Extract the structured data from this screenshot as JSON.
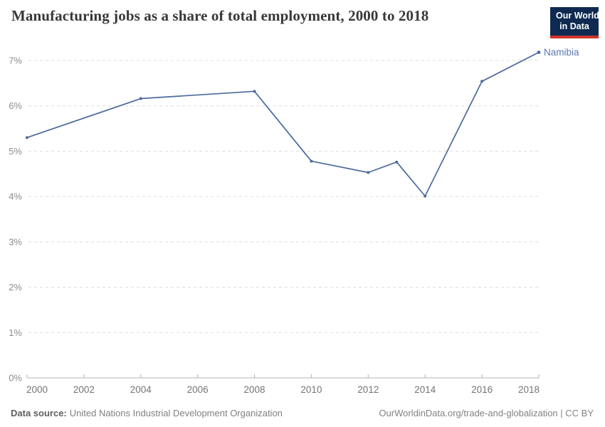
{
  "header": {
    "title": "Manufacturing jobs as a share of total employment, 2000 to 2018",
    "logo_line1": "Our World",
    "logo_line2": "in Data"
  },
  "chart_data": {
    "type": "line",
    "title": "Manufacturing jobs as a share of total employment, 2000 to 2018",
    "x": [
      2000,
      2004,
      2008,
      2010,
      2012,
      2013,
      2014,
      2016,
      2018
    ],
    "series": [
      {
        "name": "Namibia",
        "values": [
          5.3,
          6.16,
          6.32,
          4.78,
          4.53,
          4.76,
          4.01,
          6.54,
          7.18
        ]
      }
    ],
    "xlabel": "",
    "ylabel": "",
    "x_ticks": [
      2000,
      2002,
      2004,
      2006,
      2008,
      2010,
      2012,
      2014,
      2016,
      2018
    ],
    "y_ticks": [
      "0%",
      "1%",
      "2%",
      "3%",
      "4%",
      "5%",
      "6%",
      "7%"
    ],
    "xlim": [
      2000,
      2018
    ],
    "ylim": [
      0,
      7
    ],
    "grid": "horizontal-dashed",
    "legend_position": "end-of-line-label",
    "end_label": "Namibia"
  },
  "footer": {
    "source_label": "Data source:",
    "source_value": "United Nations Industrial Development Organization",
    "url": "OurWorldinData.org/trade-and-globalization",
    "separator": " | ",
    "license": "CC BY"
  },
  "colors": {
    "line": "#4c6a9c",
    "end_label": "#5b78ab",
    "grid": "#dcdcdc",
    "axis": "#b3b3b3",
    "x_tick_label": "#757575",
    "y_tick_label": "#8c8c8c",
    "title": "#383838",
    "logo_bg": "#0e2a51",
    "logo_red": "#cf332b"
  }
}
